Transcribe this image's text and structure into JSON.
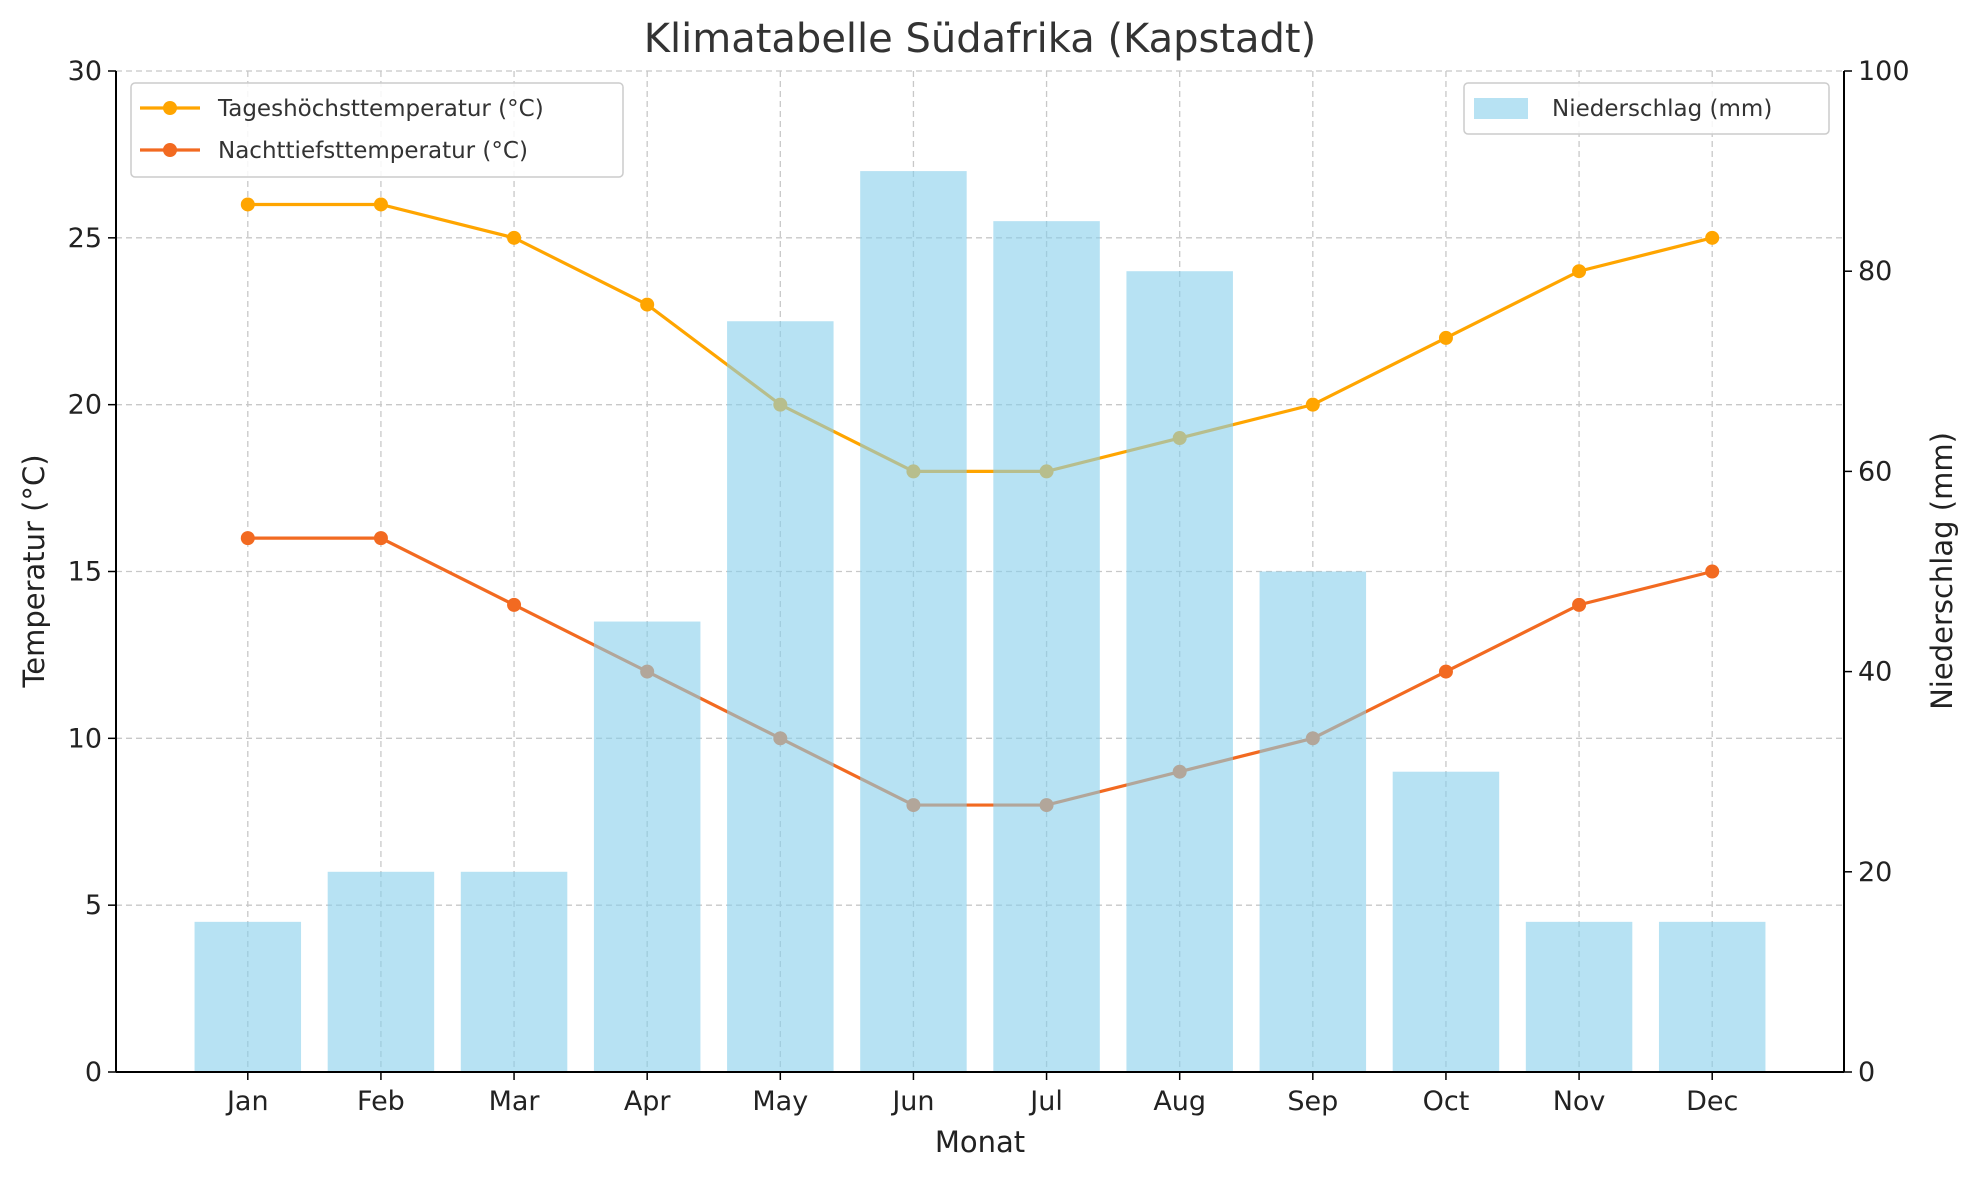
{
  "chart_data": {
    "type": "bar+line",
    "title": "Klimatabelle Südafrika (Kapstadt)",
    "xlabel": "Monat",
    "ylabel": "Temperatur (°C)",
    "ylabel_right": "Niederschlag (mm)",
    "categories": [
      "Jan",
      "Feb",
      "Mar",
      "Apr",
      "May",
      "Jun",
      "Jul",
      "Aug",
      "Sep",
      "Oct",
      "Nov",
      "Dec"
    ],
    "ylim": [
      0,
      30
    ],
    "ylim_right": [
      0,
      100
    ],
    "yticks": [
      0,
      5,
      10,
      15,
      20,
      25,
      30
    ],
    "yticks_right": [
      0,
      20,
      40,
      60,
      80,
      100
    ],
    "grid": true,
    "series": [
      {
        "name": "Tageshöchsttemperatur (°C)",
        "type": "line",
        "axis": "left",
        "color": "#FFA500",
        "values": [
          26,
          26,
          25,
          23,
          20,
          18,
          18,
          19,
          20,
          22,
          24,
          25
        ]
      },
      {
        "name": "Nachttiefsttemperatur (°C)",
        "type": "line",
        "axis": "left",
        "color": "#F26A21",
        "values": [
          16,
          16,
          14,
          12,
          10,
          8,
          8,
          9,
          10,
          12,
          14,
          15
        ]
      },
      {
        "name": "Niederschlag (mm)",
        "type": "bar",
        "axis": "right",
        "color": "#87CEEB",
        "values": [
          15,
          20,
          20,
          45,
          75,
          90,
          85,
          80,
          50,
          30,
          15,
          15
        ]
      }
    ],
    "legend_left": "top-left",
    "legend_right": "top-right"
  }
}
